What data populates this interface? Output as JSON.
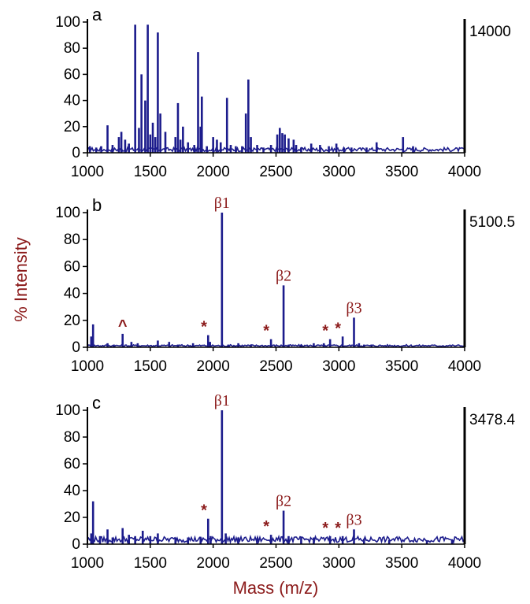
{
  "colors": {
    "spectrum": "#1c1c8c",
    "annotation": "#8b1a1a",
    "axis": "#000000",
    "right_axis": "#000000"
  },
  "chart_data": [
    {
      "type": "line",
      "panel_label": "a",
      "scale_value": "14000",
      "xlim": [
        1000,
        4000
      ],
      "ylim": [
        0,
        100
      ],
      "xticks": [
        1000,
        1500,
        2000,
        2500,
        3000,
        3500,
        4000
      ],
      "yticks": [
        0,
        20,
        40,
        60,
        80,
        100
      ],
      "baseline": 2.5,
      "peaks": [
        [
          1020,
          5
        ],
        [
          1070,
          4
        ],
        [
          1110,
          5
        ],
        [
          1160,
          21
        ],
        [
          1200,
          6
        ],
        [
          1250,
          12
        ],
        [
          1270,
          16
        ],
        [
          1300,
          10
        ],
        [
          1330,
          7
        ],
        [
          1380,
          98
        ],
        [
          1410,
          19
        ],
        [
          1430,
          60
        ],
        [
          1460,
          40
        ],
        [
          1480,
          98
        ],
        [
          1500,
          14
        ],
        [
          1520,
          23
        ],
        [
          1540,
          12
        ],
        [
          1560,
          92
        ],
        [
          1580,
          30
        ],
        [
          1620,
          16
        ],
        [
          1700,
          12
        ],
        [
          1720,
          38
        ],
        [
          1740,
          10
        ],
        [
          1760,
          20
        ],
        [
          1800,
          8
        ],
        [
          1850,
          6
        ],
        [
          1880,
          77
        ],
        [
          1900,
          20
        ],
        [
          1910,
          43
        ],
        [
          1950,
          5
        ],
        [
          2000,
          12
        ],
        [
          2030,
          10
        ],
        [
          2060,
          8
        ],
        [
          2110,
          42
        ],
        [
          2140,
          6
        ],
        [
          2180,
          5
        ],
        [
          2230,
          5
        ],
        [
          2260,
          30
        ],
        [
          2280,
          56
        ],
        [
          2300,
          12
        ],
        [
          2350,
          6
        ],
        [
          2400,
          4
        ],
        [
          2460,
          6
        ],
        [
          2510,
          14
        ],
        [
          2530,
          19
        ],
        [
          2550,
          15
        ],
        [
          2570,
          14
        ],
        [
          2600,
          11
        ],
        [
          2640,
          10
        ],
        [
          2660,
          6
        ],
        [
          2700,
          4
        ],
        [
          2780,
          7
        ],
        [
          2850,
          6
        ],
        [
          2920,
          5
        ],
        [
          2980,
          7
        ],
        [
          3040,
          4
        ],
        [
          3100,
          4
        ],
        [
          3220,
          4
        ],
        [
          3300,
          8
        ],
        [
          3510,
          12
        ],
        [
          3590,
          5
        ]
      ],
      "annotations": []
    },
    {
      "type": "line",
      "panel_label": "b",
      "scale_value": "5100.5",
      "xlim": [
        1000,
        4000
      ],
      "ylim": [
        0,
        100
      ],
      "xticks": [
        1000,
        1500,
        2000,
        2500,
        3000,
        3500,
        4000
      ],
      "yticks": [
        0,
        20,
        40,
        60,
        80,
        100
      ],
      "ylabel": "% Intensity",
      "baseline": 1.2,
      "peaks": [
        [
          1030,
          8
        ],
        [
          1045,
          17
        ],
        [
          1160,
          3
        ],
        [
          1210,
          2
        ],
        [
          1280,
          10
        ],
        [
          1350,
          4
        ],
        [
          1400,
          3
        ],
        [
          1560,
          5
        ],
        [
          1650,
          4
        ],
        [
          1720,
          2
        ],
        [
          1840,
          3
        ],
        [
          1960,
          9
        ],
        [
          1975,
          4
        ],
        [
          2070,
          100
        ],
        [
          2120,
          2
        ],
        [
          2200,
          3
        ],
        [
          2300,
          2
        ],
        [
          2460,
          6
        ],
        [
          2560,
          46
        ],
        [
          2600,
          2
        ],
        [
          2700,
          2
        ],
        [
          2800,
          3
        ],
        [
          2880,
          3
        ],
        [
          2930,
          6
        ],
        [
          3030,
          8
        ],
        [
          3120,
          22
        ],
        [
          3160,
          3
        ],
        [
          3200,
          2
        ],
        [
          3260,
          2
        ]
      ],
      "annotations": [
        {
          "x": 1280,
          "y": 10,
          "text": "^"
        },
        {
          "x": 1965,
          "y": 9,
          "text": "*"
        },
        {
          "x": 2070,
          "y": 100,
          "text": "β1"
        },
        {
          "x": 2460,
          "y": 6,
          "text": "*"
        },
        {
          "x": 2560,
          "y": 46,
          "text": "β2"
        },
        {
          "x": 2930,
          "y": 6,
          "text": "*"
        },
        {
          "x": 3030,
          "y": 8,
          "text": "*"
        },
        {
          "x": 3120,
          "y": 22,
          "text": "β3"
        }
      ]
    },
    {
      "type": "line",
      "panel_label": "c",
      "scale_value": "3478.4",
      "xlim": [
        1000,
        4000
      ],
      "ylim": [
        0,
        100
      ],
      "xticks": [
        1000,
        1500,
        2000,
        2500,
        3000,
        3500,
        4000
      ],
      "yticks": [
        0,
        20,
        40,
        60,
        80,
        100
      ],
      "xlabel": "Mass (m/z)",
      "baseline": 3.5,
      "peaks": [
        [
          1030,
          8
        ],
        [
          1045,
          32
        ],
        [
          1100,
          6
        ],
        [
          1160,
          11
        ],
        [
          1200,
          5
        ],
        [
          1280,
          12
        ],
        [
          1330,
          7
        ],
        [
          1380,
          6
        ],
        [
          1440,
          10
        ],
        [
          1500,
          6
        ],
        [
          1560,
          8
        ],
        [
          1700,
          5
        ],
        [
          1800,
          5
        ],
        [
          1900,
          5
        ],
        [
          1960,
          19
        ],
        [
          1980,
          6
        ],
        [
          2070,
          100
        ],
        [
          2100,
          8
        ],
        [
          2200,
          5
        ],
        [
          2350,
          4
        ],
        [
          2460,
          7
        ],
        [
          2560,
          25
        ],
        [
          2600,
          6
        ],
        [
          2700,
          5
        ],
        [
          2800,
          5
        ],
        [
          2930,
          6
        ],
        [
          3030,
          6
        ],
        [
          3120,
          11
        ],
        [
          3200,
          4
        ],
        [
          3400,
          3
        ],
        [
          3700,
          3
        ],
        [
          3900,
          3
        ]
      ],
      "annotations": [
        {
          "x": 1965,
          "y": 19,
          "text": "*"
        },
        {
          "x": 2070,
          "y": 100,
          "text": "β1"
        },
        {
          "x": 2460,
          "y": 7,
          "text": "*"
        },
        {
          "x": 2560,
          "y": 25,
          "text": "β2"
        },
        {
          "x": 2930,
          "y": 6,
          "text": "*"
        },
        {
          "x": 3030,
          "y": 6,
          "text": "*"
        },
        {
          "x": 3120,
          "y": 11,
          "text": "β3"
        }
      ]
    }
  ]
}
